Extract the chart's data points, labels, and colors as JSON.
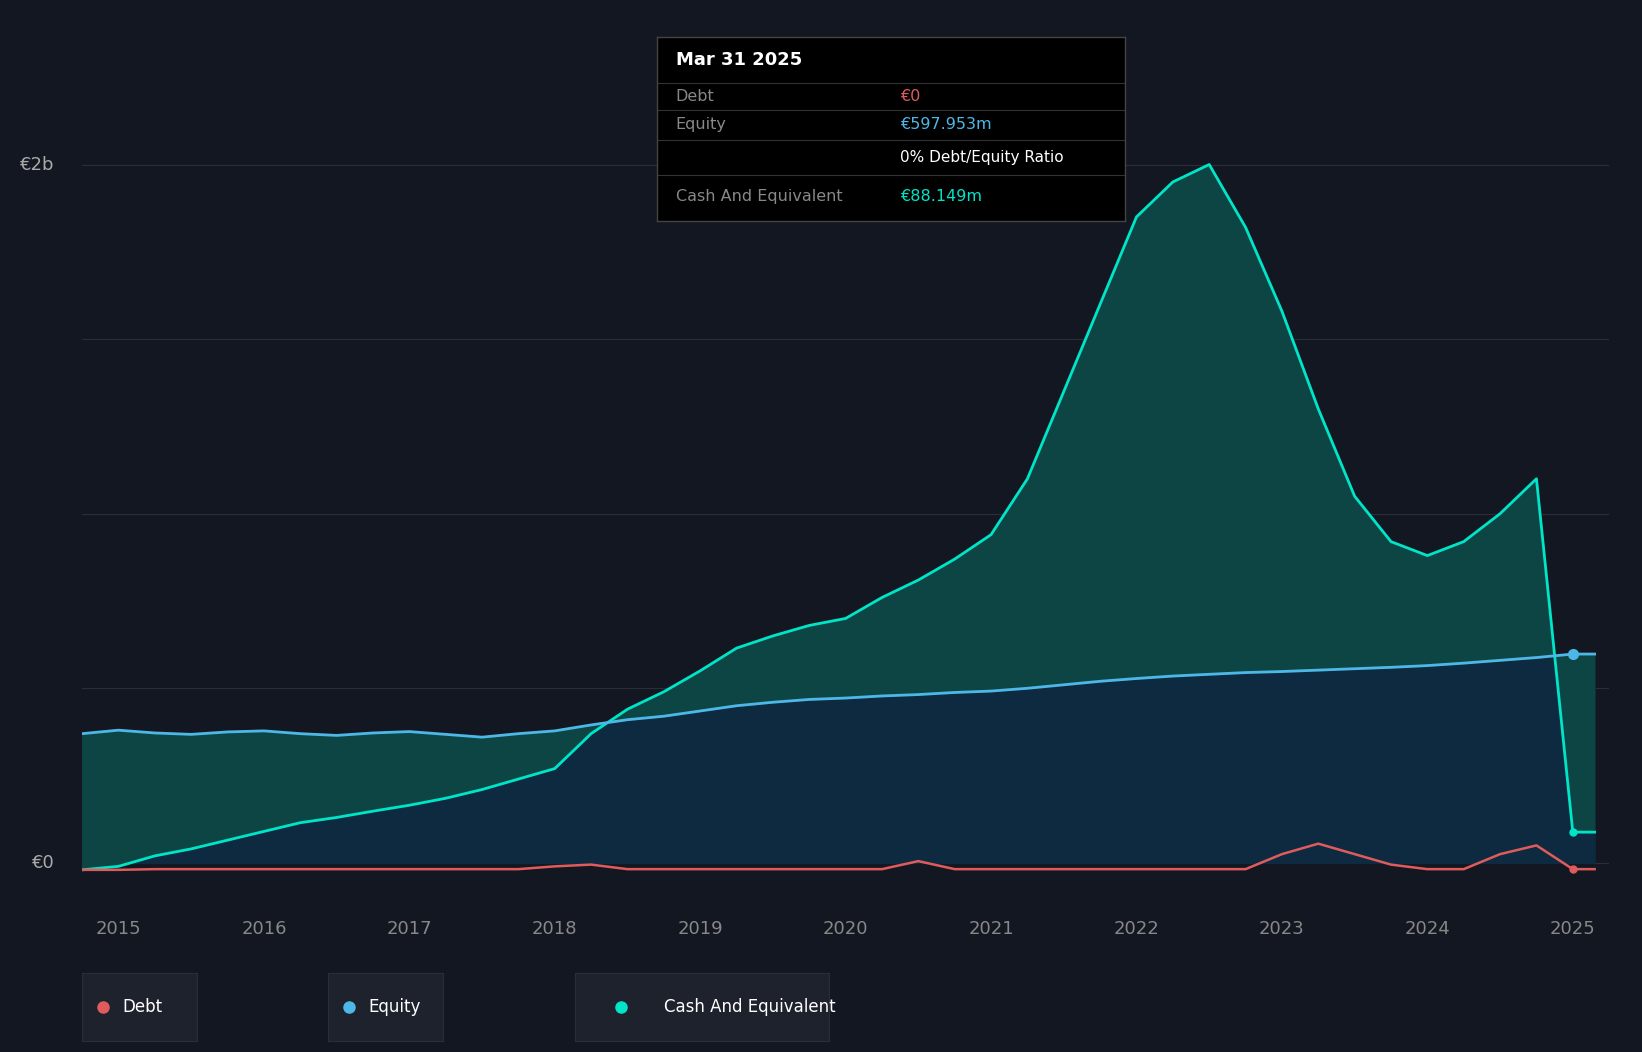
{
  "background_color": "#131722",
  "plot_bg_color": "#131722",
  "grid_color": "#2a2e39",
  "debt_color": "#e05c5c",
  "equity_color": "#4db8e8",
  "cash_color": "#00e5c8",
  "legend_bg": "#1e222d",
  "years": [
    2014.75,
    2015.0,
    2015.25,
    2015.5,
    2015.75,
    2016.0,
    2016.25,
    2016.5,
    2016.75,
    2017.0,
    2017.25,
    2017.5,
    2017.75,
    2018.0,
    2018.25,
    2018.5,
    2018.75,
    2019.0,
    2019.25,
    2019.5,
    2019.75,
    2020.0,
    2020.25,
    2020.5,
    2020.75,
    2021.0,
    2021.25,
    2021.5,
    2021.75,
    2022.0,
    2022.25,
    2022.5,
    2022.75,
    2023.0,
    2023.25,
    2023.5,
    2023.75,
    2024.0,
    2024.25,
    2024.5,
    2024.75,
    2025.0,
    2025.15
  ],
  "equity": [
    370,
    380,
    372,
    368,
    375,
    378,
    370,
    365,
    372,
    376,
    368,
    360,
    370,
    378,
    395,
    410,
    420,
    435,
    450,
    460,
    468,
    472,
    478,
    482,
    488,
    492,
    500,
    510,
    520,
    528,
    535,
    540,
    545,
    548,
    552,
    556,
    560,
    565,
    572,
    580,
    588,
    598,
    598
  ],
  "cash": [
    -20,
    -10,
    20,
    40,
    65,
    90,
    115,
    130,
    148,
    165,
    185,
    210,
    240,
    270,
    370,
    440,
    490,
    550,
    615,
    650,
    680,
    700,
    760,
    810,
    870,
    940,
    1100,
    1350,
    1600,
    1850,
    1950,
    2000,
    1820,
    1580,
    1300,
    1050,
    920,
    880,
    920,
    1000,
    1100,
    88,
    88
  ],
  "debt": [
    -20,
    -20,
    -18,
    -18,
    -18,
    -18,
    -18,
    -18,
    -18,
    -18,
    -18,
    -18,
    -18,
    -10,
    -5,
    -18,
    -18,
    -18,
    -18,
    -18,
    -18,
    -18,
    -18,
    5,
    -18,
    -18,
    -18,
    -18,
    -18,
    -18,
    -18,
    -18,
    -18,
    25,
    55,
    25,
    -5,
    -18,
    -18,
    25,
    50,
    -18,
    -18
  ],
  "tooltip_date": "Mar 31 2025",
  "tooltip_debt_value": "€0",
  "tooltip_equity_value": "€597.953m",
  "tooltip_ratio": "0% Debt/Equity Ratio",
  "tooltip_cash_value": "€88.149m",
  "legend_items": [
    "Debt",
    "Equity",
    "Cash And Equivalent"
  ],
  "xtick_positions": [
    2015,
    2016,
    2017,
    2018,
    2019,
    2020,
    2021,
    2022,
    2023,
    2024,
    2025
  ],
  "ylim_min": -150,
  "ylim_max": 2200
}
